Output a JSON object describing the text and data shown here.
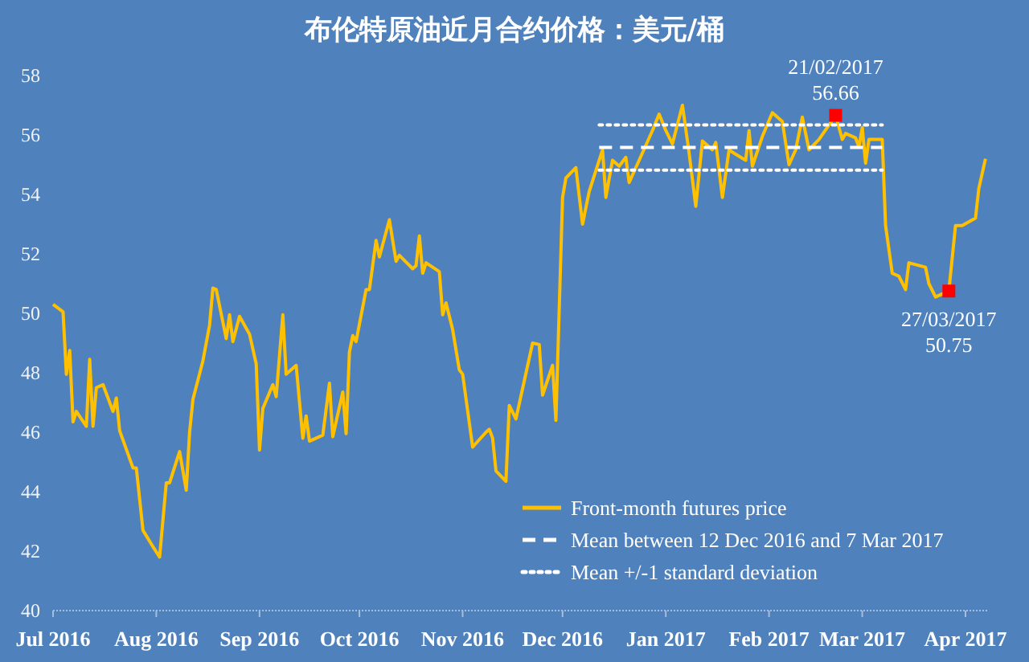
{
  "chart_data": {
    "type": "line",
    "title": "布伦特原油近月合约价格：美元/桶",
    "xlim": [
      "2016-07-01",
      "2017-04-08"
    ],
    "xticks": [
      {
        "value": "2016-07-01",
        "label": "Jul 2016"
      },
      {
        "value": "2016-08-01",
        "label": "Aug 2016"
      },
      {
        "value": "2016-09-01",
        "label": "Sep 2016"
      },
      {
        "value": "2016-10-01",
        "label": "Oct 2016"
      },
      {
        "value": "2016-11-01",
        "label": "Nov 2016"
      },
      {
        "value": "2016-12-01",
        "label": "Dec 2016"
      },
      {
        "value": "2017-01-01",
        "label": "Jan 2017"
      },
      {
        "value": "2017-02-01",
        "label": "Feb 2017"
      },
      {
        "value": "2017-03-01",
        "label": "Mar 2017"
      },
      {
        "value": "2017-04-01",
        "label": "Apr 2017"
      }
    ],
    "ylim": [
      40,
      58
    ],
    "yticks": [
      40,
      42,
      44,
      46,
      48,
      50,
      52,
      54,
      56,
      58
    ],
    "grid": false,
    "legend": "bottom right",
    "series": [
      {
        "name": "Front-month futures price",
        "color": "#ffc000",
        "line_style": "solid",
        "x": [
          "2016-07-01",
          "2016-07-04",
          "2016-07-05",
          "2016-07-06",
          "2016-07-07",
          "2016-07-08",
          "2016-07-11",
          "2016-07-12",
          "2016-07-13",
          "2016-07-14",
          "2016-07-16",
          "2016-07-19",
          "2016-07-20",
          "2016-07-21",
          "2016-07-25",
          "2016-07-26",
          "2016-07-28",
          "2016-07-31",
          "2016-08-02",
          "2016-08-04",
          "2016-08-05",
          "2016-08-08",
          "2016-08-10",
          "2016-08-11",
          "2016-08-12",
          "2016-08-15",
          "2016-08-17",
          "2016-08-18",
          "2016-08-19",
          "2016-08-22",
          "2016-08-23",
          "2016-08-24",
          "2016-08-26",
          "2016-08-29",
          "2016-08-31",
          "2016-09-01",
          "2016-09-02",
          "2016-09-05",
          "2016-09-06",
          "2016-09-08",
          "2016-09-09",
          "2016-09-12",
          "2016-09-14",
          "2016-09-15",
          "2016-09-16",
          "2016-09-20",
          "2016-09-22",
          "2016-09-23",
          "2016-09-26",
          "2016-09-27",
          "2016-09-28",
          "2016-09-29",
          "2016-09-30",
          "2016-10-03",
          "2016-10-04",
          "2016-10-06",
          "2016-10-07",
          "2016-10-10",
          "2016-10-12",
          "2016-10-13",
          "2016-10-17",
          "2016-10-18",
          "2016-10-19",
          "2016-10-20",
          "2016-10-21",
          "2016-10-25",
          "2016-10-26",
          "2016-10-27",
          "2016-10-29",
          "2016-10-31",
          "2016-11-01",
          "2016-11-04",
          "2016-11-08",
          "2016-11-09",
          "2016-11-10",
          "2016-11-11",
          "2016-11-14",
          "2016-11-15",
          "2016-11-17",
          "2016-11-22",
          "2016-11-24",
          "2016-11-25",
          "2016-11-28",
          "2016-11-29",
          "2016-12-01",
          "2016-12-02",
          "2016-12-05",
          "2016-12-07",
          "2016-12-09",
          "2016-12-13",
          "2016-12-14",
          "2016-12-16",
          "2016-12-18",
          "2016-12-20",
          "2016-12-21",
          "2016-12-25",
          "2016-12-28",
          "2016-12-30",
          "2017-01-01",
          "2017-01-03",
          "2017-01-06",
          "2017-01-08",
          "2017-01-10",
          "2017-01-12",
          "2017-01-15",
          "2017-01-16",
          "2017-01-18",
          "2017-01-20",
          "2017-01-22",
          "2017-01-25",
          "2017-01-26",
          "2017-01-27",
          "2017-01-30",
          "2017-02-02",
          "2017-02-05",
          "2017-02-07",
          "2017-02-09",
          "2017-02-11",
          "2017-02-13",
          "2017-02-16",
          "2017-02-21",
          "2017-02-23",
          "2017-02-24",
          "2017-02-27",
          "2017-02-28",
          "2017-03-01",
          "2017-03-02",
          "2017-03-03",
          "2017-03-07",
          "2017-03-08",
          "2017-03-10",
          "2017-03-12",
          "2017-03-14",
          "2017-03-15",
          "2017-03-20",
          "2017-03-21",
          "2017-03-23",
          "2017-03-25",
          "2017-03-27",
          "2017-03-29",
          "2017-03-31",
          "2017-04-04",
          "2017-04-05",
          "2017-04-07"
        ],
        "values": [
          50.3,
          50.05,
          47.95,
          48.75,
          46.35,
          46.7,
          46.2,
          48.45,
          46.2,
          47.5,
          47.6,
          46.7,
          47.15,
          46.05,
          44.8,
          44.8,
          42.7,
          42.15,
          41.8,
          44.3,
          44.3,
          45.35,
          44.05,
          46.0,
          47.1,
          48.4,
          49.6,
          50.85,
          50.8,
          49.15,
          49.95,
          49.05,
          49.9,
          49.3,
          48.3,
          45.4,
          46.8,
          47.6,
          47.2,
          49.95,
          47.95,
          48.25,
          45.8,
          46.55,
          45.7,
          45.9,
          47.65,
          45.85,
          47.35,
          45.95,
          48.7,
          49.25,
          49.05,
          50.8,
          50.8,
          52.45,
          51.9,
          53.15,
          51.75,
          51.95,
          51.5,
          51.6,
          52.6,
          51.35,
          51.7,
          51.4,
          49.95,
          50.35,
          49.45,
          48.1,
          47.95,
          45.5,
          46.0,
          46.1,
          45.8,
          44.7,
          44.35,
          46.9,
          46.45,
          49.0,
          48.95,
          47.25,
          48.25,
          46.4,
          53.9,
          54.55,
          54.9,
          53.0,
          54.1,
          55.5,
          53.9,
          55.15,
          54.95,
          55.25,
          54.4,
          55.4,
          56.15,
          56.7,
          56.15,
          55.7,
          57.0,
          55.4,
          53.6,
          55.8,
          55.5,
          55.75,
          53.9,
          55.5,
          55.35,
          55.15,
          56.15,
          54.95,
          55.95,
          56.75,
          56.45,
          55.0,
          55.5,
          56.6,
          55.5,
          55.85,
          56.66,
          55.85,
          56.05,
          55.9,
          55.6,
          56.25,
          55.05,
          55.85,
          55.85,
          52.95,
          51.35,
          51.25,
          50.8,
          51.7,
          51.55,
          51.0,
          50.55,
          50.65,
          50.75,
          52.95,
          52.95,
          53.2,
          54.2,
          55.2
        ]
      },
      {
        "name": "Mean between 12 Dec 2016 and 7 Mar 2017",
        "color": "#ffffff",
        "line_style": "dashed",
        "x": [
          "2016-12-12",
          "2017-03-07"
        ],
        "values": [
          55.58,
          55.58
        ]
      },
      {
        "name": "Mean +/-1 standard deviation",
        "color": "#ffffff",
        "line_style": "dotted",
        "x": [
          "2016-12-12",
          "2017-03-07"
        ],
        "values": [
          56.34,
          56.34
        ]
      },
      {
        "color": "#ffffff",
        "line_style": "dotted",
        "x": [
          "2016-12-12",
          "2017-03-07"
        ],
        "values": [
          54.82,
          54.82
        ]
      },
      {
        "type": "scatter",
        "color": "#ff0000",
        "marker": "square",
        "x": [
          "2017-02-21",
          "2017-03-27"
        ],
        "values": [
          56.66,
          50.75
        ]
      }
    ],
    "annotations": [
      {
        "text": "21/02/2017\n56.66",
        "x": "2017-02-21",
        "y": 56.66
      },
      {
        "text": "27/03/2017\n50.75",
        "x": "2017-03-27",
        "y": 50.75
      }
    ]
  }
}
